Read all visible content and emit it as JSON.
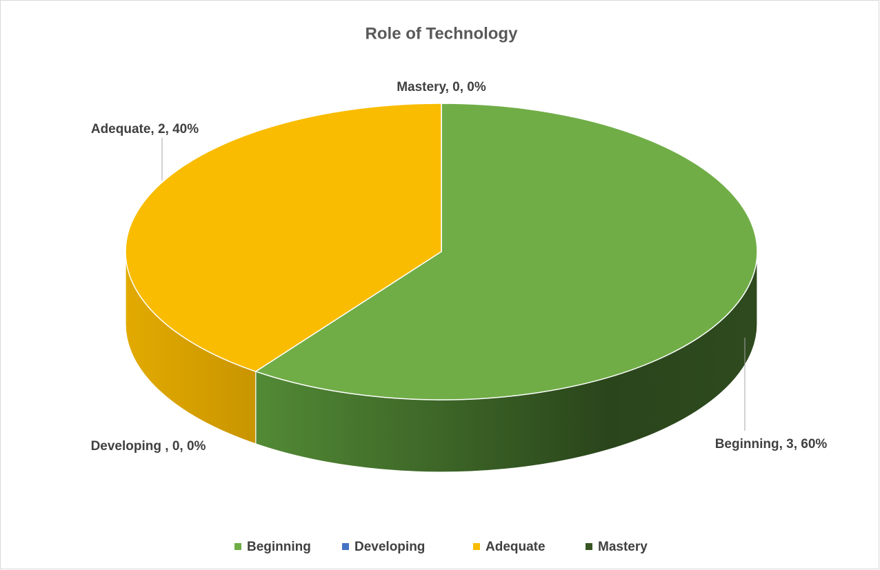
{
  "chart_data": {
    "type": "pie",
    "title": "Role of Technology",
    "categories": [
      "Beginning",
      "Developing",
      "Adequate",
      "Mastery"
    ],
    "values": [
      3,
      0,
      2,
      0
    ],
    "value_labels": [
      "Beginning, 3, 60%",
      "Developing , 0, 0%",
      "Adequate, 2, 40%",
      "Mastery, 0, 0%"
    ],
    "colors": [
      "#70ad47",
      "#4472c4",
      "#f9bc00",
      "#375623"
    ],
    "legend": "bottom"
  }
}
